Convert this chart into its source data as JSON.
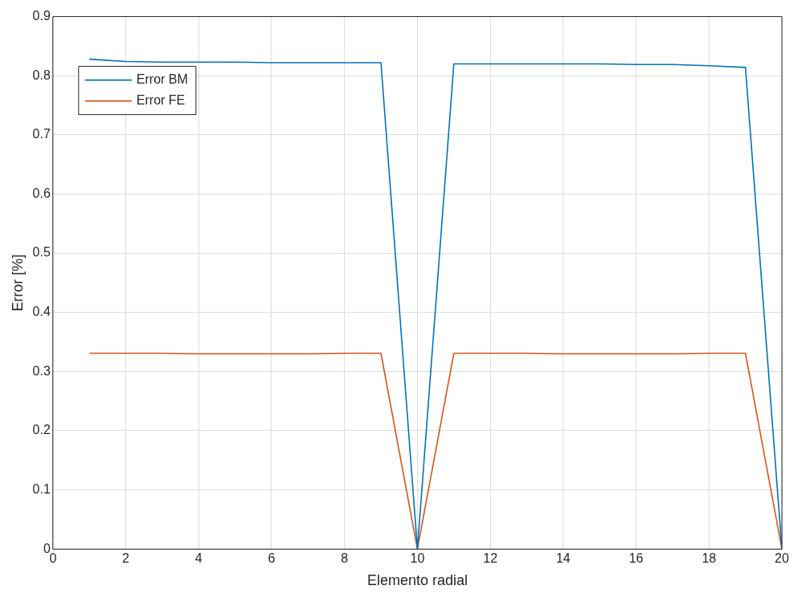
{
  "chart_data": {
    "type": "line",
    "xlabel": "Elemento radial",
    "ylabel": "Error [%]",
    "x": [
      1,
      2,
      3,
      4,
      5,
      6,
      7,
      8,
      9,
      10,
      11,
      12,
      13,
      14,
      15,
      16,
      17,
      18,
      19,
      20
    ],
    "series": [
      {
        "name": "Error BM",
        "color": "#0072bd",
        "values": [
          0.828,
          0.824,
          0.823,
          0.823,
          0.823,
          0.822,
          0.822,
          0.822,
          0.822,
          0,
          0.82,
          0.82,
          0.82,
          0.82,
          0.82,
          0.819,
          0.819,
          0.817,
          0.814,
          0
        ]
      },
      {
        "name": "Error FE",
        "color": "#d95319",
        "values": [
          0.331,
          0.331,
          0.331,
          0.33,
          0.33,
          0.33,
          0.33,
          0.331,
          0.331,
          0,
          0.331,
          0.331,
          0.331,
          0.33,
          0.33,
          0.33,
          0.33,
          0.331,
          0.331,
          0
        ]
      }
    ],
    "xlim": [
      0,
      20
    ],
    "xticks": [
      0,
      2,
      4,
      6,
      8,
      10,
      12,
      14,
      16,
      18,
      20
    ],
    "ylim": [
      0,
      0.9
    ],
    "yticks": [
      0,
      0.1,
      0.2,
      0.3,
      0.4,
      0.5,
      0.6,
      0.7,
      0.8,
      0.9
    ],
    "grid": true,
    "legend": "top left",
    "marker": "none",
    "line_style": "solid"
  }
}
